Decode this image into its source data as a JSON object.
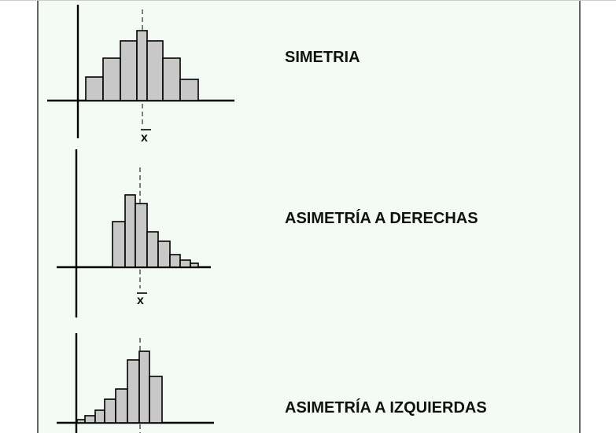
{
  "colors": {
    "panel_bg": "#f4fbf4",
    "bar_fill": "#c8c8c8",
    "stroke": "#000000"
  },
  "mean_symbol": "x",
  "panels": [
    {
      "label": "SIMETRIA",
      "bar_heights": [
        30,
        54,
        76,
        89,
        76,
        54,
        27
      ],
      "mean_bar_index": 3,
      "show_mean_label": true
    },
    {
      "label": "ASIMETRÍA A DERECHAS",
      "bar_heights": [
        58,
        92,
        81,
        45,
        33,
        16,
        9,
        5
      ],
      "mean_bar_index": 2,
      "show_mean_label": true
    },
    {
      "label": "ASIMETRÍA A IZQUIERDAS",
      "bar_heights": [
        4,
        9,
        16,
        30,
        43,
        80,
        91,
        59
      ],
      "mean_bar_index": 5,
      "show_mean_label": false
    }
  ]
}
